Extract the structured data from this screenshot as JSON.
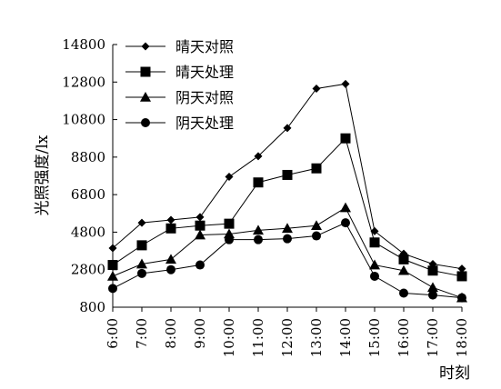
{
  "chart_data": {
    "type": "line",
    "categories": [
      "6:00",
      "7:00",
      "8:00",
      "9:00",
      "10:00",
      "11:00",
      "12:00",
      "13:00",
      "14:00",
      "15:00",
      "16:00",
      "17:00",
      "18:00"
    ],
    "xlabel": "时刻",
    "ylabel": "光照强度/lx",
    "ylim": [
      800,
      14800
    ],
    "yticks": [
      "14800",
      "12800",
      "10800",
      "8800",
      "6800",
      "4800",
      "2800",
      "800"
    ],
    "grid": false,
    "legend_position": "top-left",
    "series": [
      {
        "name": "晴天对照",
        "marker": "diamond",
        "values": [
          3950,
          5300,
          5450,
          5600,
          7750,
          8850,
          10350,
          12450,
          12700,
          4850,
          3650,
          3100,
          2850
        ]
      },
      {
        "name": "晴天处理",
        "marker": "square",
        "values": [
          3050,
          4100,
          5000,
          5150,
          5250,
          7450,
          7850,
          8200,
          9800,
          4250,
          3350,
          2750,
          2450
        ]
      },
      {
        "name": "阴天对照",
        "marker": "triangle",
        "values": [
          2450,
          3100,
          3350,
          4650,
          4700,
          4900,
          5000,
          5150,
          6100,
          3050,
          2750,
          1850,
          1300
        ]
      },
      {
        "name": "阴天处理",
        "marker": "circle",
        "values": [
          1800,
          2600,
          2800,
          3050,
          4400,
          4400,
          4450,
          4600,
          5300,
          2450,
          1550,
          1450,
          1300
        ]
      }
    ]
  }
}
